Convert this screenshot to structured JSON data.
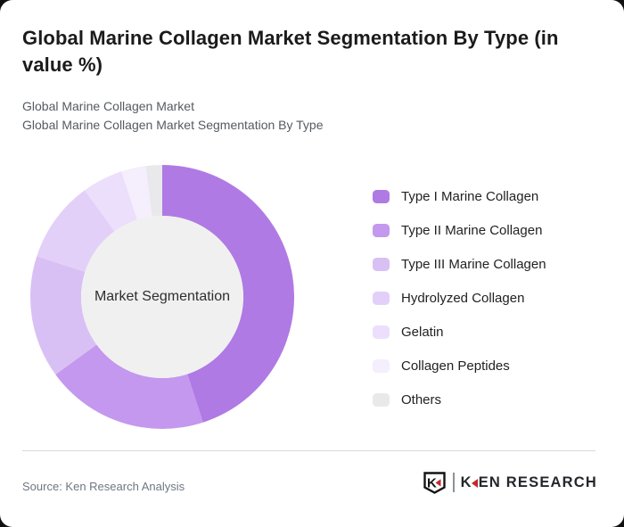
{
  "header": {
    "title": "Global Marine Collagen Market Segmentation By Type (in value %)",
    "subtitle_line1": "Global Marine Collagen Market",
    "subtitle_line2": "Global Marine Collagen Market Segmentation By Type"
  },
  "chart_data": {
    "type": "pie",
    "subtype": "donut",
    "title": "Global Marine Collagen Market Segmentation By Type (in value %)",
    "center_label": "Market Segmentation",
    "categories": [
      "Type I Marine Collagen",
      "Type II Marine Collagen",
      "Type III Marine Collagen",
      "Hydrolyzed Collagen",
      "Gelatin",
      "Collagen Peptides",
      "Others"
    ],
    "values": [
      45,
      20,
      15,
      10,
      5,
      3,
      2
    ],
    "unit": "%",
    "colors": [
      "#b07ae4",
      "#c498ee",
      "#d9c0f4",
      "#e3d0f8",
      "#ecdffb",
      "#f4eefd",
      "#e9e9eb"
    ],
    "start_angle_deg": 0,
    "direction": "clockwise",
    "outer_radius": 148,
    "inner_radius": 91,
    "hole_color": "#f0f0f0",
    "legend_position": "right",
    "data_labels": "none"
  },
  "footer": {
    "source": "Source: Ken Research Analysis",
    "logo": {
      "badge_letter": "K",
      "wordmark_k": "K",
      "wordmark_rest": "EN RESEARCH",
      "accent_color": "#c5282c",
      "text_color": "#24272b"
    }
  }
}
